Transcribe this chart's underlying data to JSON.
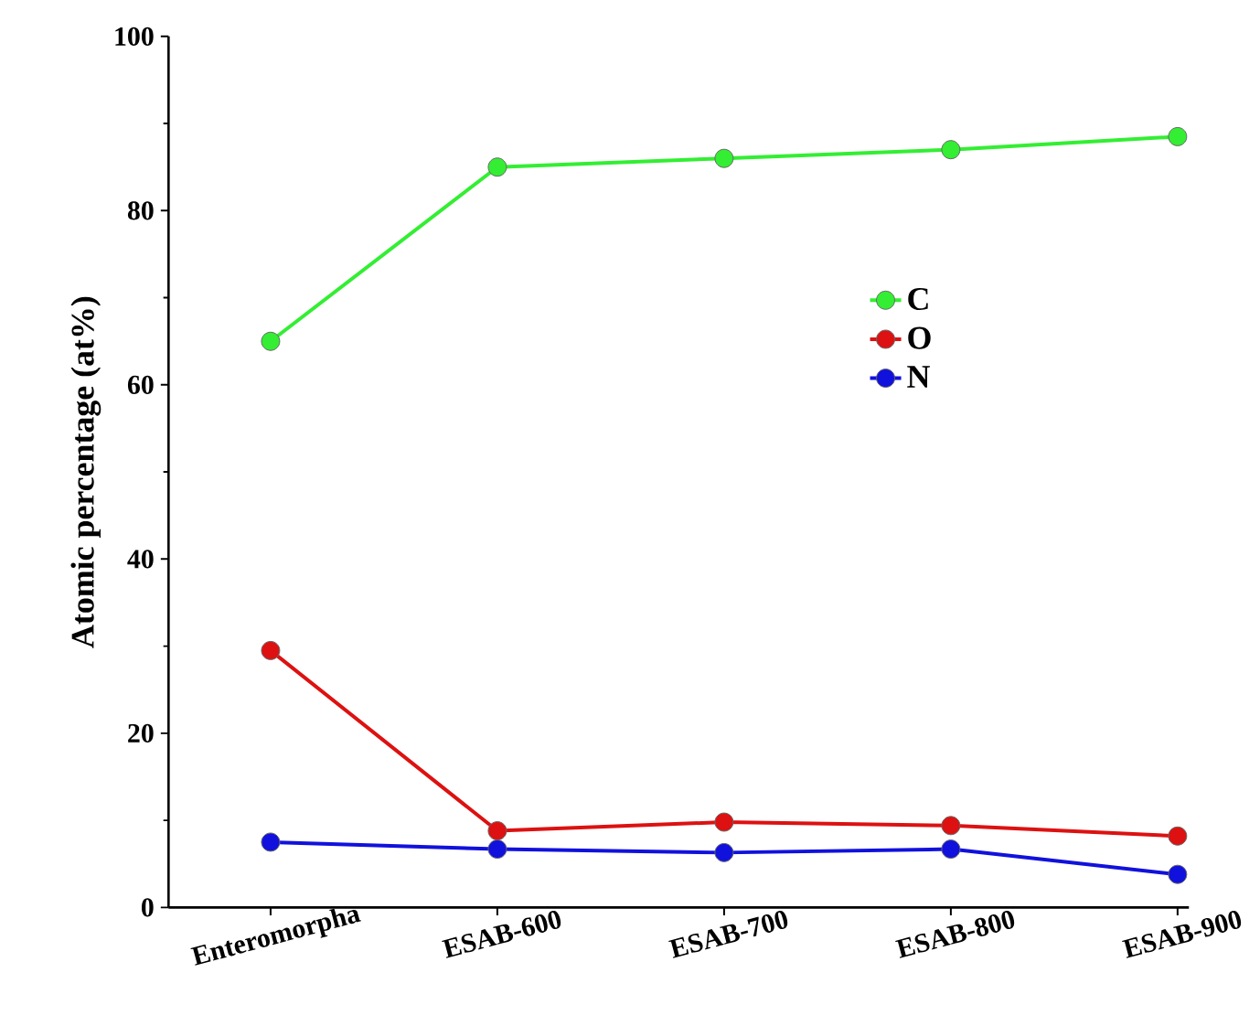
{
  "chart_data": {
    "type": "line",
    "ylabel": "Atomic percentage (at%)",
    "categories": [
      "Enteromorpha",
      "ESAB-600",
      "ESAB-700",
      "ESAB-800",
      "ESAB-900"
    ],
    "series": [
      {
        "name": "C",
        "color": "#33ee33",
        "values": [
          65,
          85,
          86,
          87,
          88.5
        ]
      },
      {
        "name": "O",
        "color": "#dd1111",
        "values": [
          29.5,
          8.8,
          9.8,
          9.4,
          8.2
        ]
      },
      {
        "name": "N",
        "color": "#1111dd",
        "values": [
          7.5,
          6.7,
          6.3,
          6.7,
          3.8
        ]
      }
    ],
    "ylim": [
      0,
      100
    ],
    "yticks": [
      0,
      20,
      40,
      60,
      80,
      100
    ],
    "legend": "right",
    "marker": "circle",
    "line_style": "solid",
    "grid": false
  }
}
